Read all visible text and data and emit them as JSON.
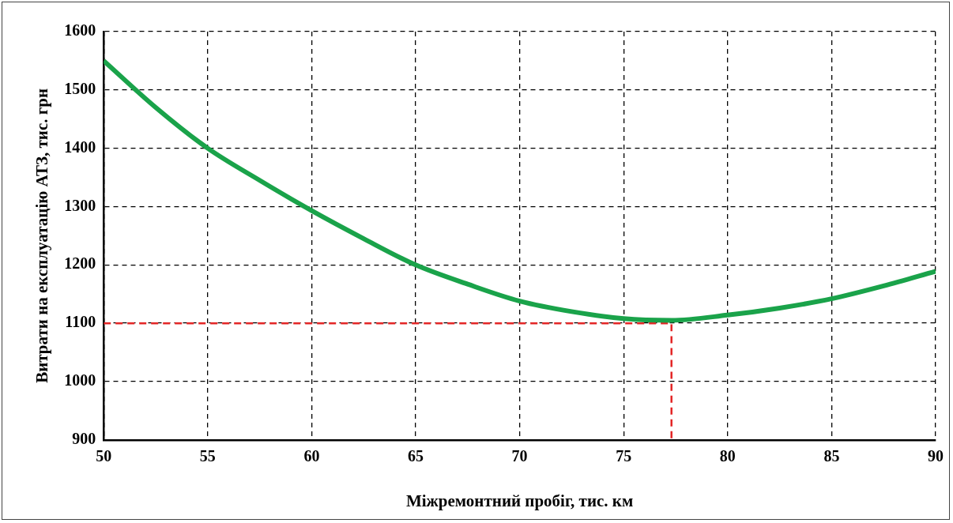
{
  "chart_data": {
    "type": "line",
    "xlabel": "Міжремонтний пробіг, тис. км",
    "ylabel": "Витрати на експлуатацію АТЗ, тис. грн",
    "xlim": [
      50,
      90
    ],
    "xticks": [
      50,
      55,
      60,
      65,
      70,
      75,
      80,
      85,
      90
    ],
    "ylim": [
      900,
      1600
    ],
    "yticks": [
      900,
      1000,
      1100,
      1200,
      1300,
      1400,
      1500,
      1600
    ],
    "grid": true,
    "marker": "none",
    "legend": false,
    "series": [
      {
        "color": "#1aa34a",
        "line_style": "solid",
        "x": [
          50,
          52.5,
          55,
          57.5,
          60,
          62.5,
          65,
          67.5,
          70,
          72.5,
          75,
          77.3,
          80,
          82.5,
          85,
          87.5,
          90
        ],
        "values": [
          1550,
          1470,
          1400,
          1345,
          1293,
          1245,
          1200,
          1167,
          1138,
          1120,
          1108,
          1105,
          1114,
          1126,
          1142,
          1164,
          1189
        ]
      },
      {
        "color": "#e32626",
        "line_style": "dashed",
        "x": [
          50,
          77.3,
          77.3
        ],
        "values": [
          1100,
          1100,
          900
        ]
      }
    ]
  }
}
